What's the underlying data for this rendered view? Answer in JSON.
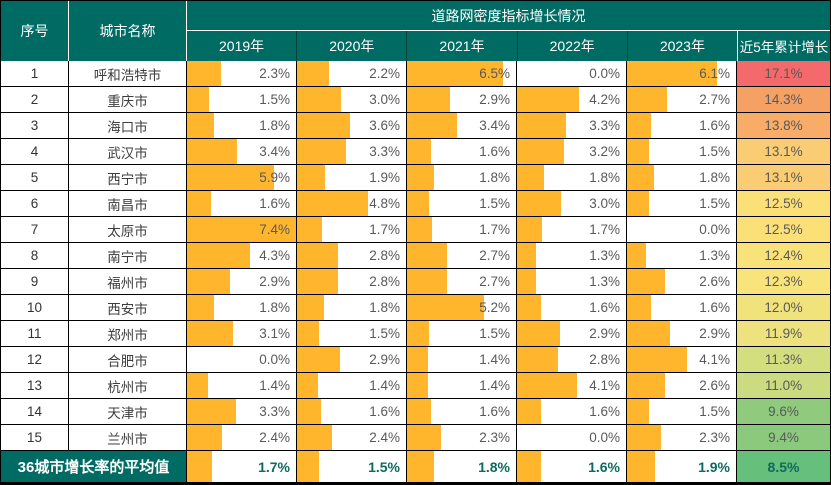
{
  "chart_data": {
    "type": "table",
    "title": "道路网密度指标增长情况",
    "unit": "%",
    "categories": [
      "呼和浩特市",
      "重庆市",
      "海口市",
      "武汉市",
      "西宁市",
      "南昌市",
      "太原市",
      "南宁市",
      "福州市",
      "西安市",
      "郑州市",
      "合肥市",
      "杭州市",
      "天津市",
      "兰州市"
    ],
    "series": [
      {
        "name": "2019年",
        "values": [
          2.3,
          1.5,
          1.8,
          3.4,
          5.9,
          1.6,
          7.4,
          4.3,
          2.9,
          1.8,
          3.1,
          0.0,
          1.4,
          3.3,
          2.4
        ]
      },
      {
        "name": "2020年",
        "values": [
          2.2,
          3.0,
          3.6,
          3.3,
          1.9,
          4.8,
          1.7,
          2.8,
          2.8,
          1.8,
          1.5,
          2.9,
          1.4,
          1.6,
          2.4
        ]
      },
      {
        "name": "2021年",
        "values": [
          6.5,
          2.9,
          3.4,
          1.6,
          1.8,
          1.5,
          1.7,
          2.7,
          2.7,
          5.2,
          1.5,
          1.4,
          1.4,
          1.6,
          2.3
        ]
      },
      {
        "name": "2022年",
        "values": [
          0.0,
          4.2,
          3.3,
          3.2,
          1.8,
          3.0,
          1.7,
          1.3,
          1.3,
          1.6,
          2.9,
          2.8,
          4.1,
          1.6,
          0.0
        ]
      },
      {
        "name": "2023年",
        "values": [
          6.1,
          2.7,
          1.6,
          1.5,
          1.8,
          1.5,
          0.0,
          1.3,
          2.6,
          1.6,
          2.9,
          4.1,
          2.6,
          1.5,
          2.3
        ]
      },
      {
        "name": "近5年累计增长",
        "values": [
          17.1,
          14.3,
          13.8,
          13.1,
          13.1,
          12.5,
          12.5,
          12.4,
          12.3,
          12.0,
          11.9,
          11.3,
          11.0,
          9.6,
          9.4
        ]
      }
    ],
    "summary_row": {
      "label": "36城市增长率的平均值",
      "values": [
        1.7,
        1.5,
        1.8,
        1.6,
        1.9
      ],
      "cumulative": 8.5
    },
    "layout_hints": {
      "data_bars": "orange, scaled 0 to ~7.4%",
      "cumulative_color_scale": "red-yellow-green"
    }
  },
  "table": {
    "header": {
      "col_index": "序号",
      "col_city": "城市名称",
      "group_title": "道路网密度指标增长情况",
      "year_cols": [
        "2019年",
        "2020年",
        "2021年",
        "2022年",
        "2023年"
      ],
      "cumulative_col": "近5年累计增长"
    },
    "rows": [
      {
        "index": "1",
        "city": "呼和浩特市",
        "values": [
          "2.3%",
          "2.2%",
          "6.5%",
          "0.0%",
          "6.1%"
        ],
        "cumulative": "17.1%",
        "cumulative_color": "#F4696B"
      },
      {
        "index": "2",
        "city": "重庆市",
        "values": [
          "1.5%",
          "3.0%",
          "2.9%",
          "4.2%",
          "2.7%"
        ],
        "cumulative": "14.3%",
        "cumulative_color": "#F5A163"
      },
      {
        "index": "3",
        "city": "海口市",
        "values": [
          "1.8%",
          "3.6%",
          "3.4%",
          "3.3%",
          "1.6%"
        ],
        "cumulative": "13.8%",
        "cumulative_color": "#F7AD68"
      },
      {
        "index": "4",
        "city": "武汉市",
        "values": [
          "3.4%",
          "3.3%",
          "1.6%",
          "3.2%",
          "1.5%"
        ],
        "cumulative": "13.1%",
        "cumulative_color": "#FACC73"
      },
      {
        "index": "5",
        "city": "西宁市",
        "values": [
          "5.9%",
          "1.9%",
          "1.8%",
          "1.8%",
          "1.8%"
        ],
        "cumulative": "13.1%",
        "cumulative_color": "#FACC73"
      },
      {
        "index": "6",
        "city": "南昌市",
        "values": [
          "1.6%",
          "4.8%",
          "1.5%",
          "3.0%",
          "1.5%"
        ],
        "cumulative": "12.5%",
        "cumulative_color": "#FBE078"
      },
      {
        "index": "7",
        "city": "太原市",
        "values": [
          "7.4%",
          "1.7%",
          "1.7%",
          "1.7%",
          "0.0%"
        ],
        "cumulative": "12.5%",
        "cumulative_color": "#FBE078"
      },
      {
        "index": "8",
        "city": "南宁市",
        "values": [
          "4.3%",
          "2.8%",
          "2.7%",
          "1.3%",
          "1.3%"
        ],
        "cumulative": "12.4%",
        "cumulative_color": "#FAE27A"
      },
      {
        "index": "9",
        "city": "福州市",
        "values": [
          "2.9%",
          "2.8%",
          "2.7%",
          "1.3%",
          "2.6%"
        ],
        "cumulative": "12.3%",
        "cumulative_color": "#F8E47A"
      },
      {
        "index": "10",
        "city": "西安市",
        "values": [
          "1.8%",
          "1.8%",
          "5.2%",
          "1.6%",
          "1.6%"
        ],
        "cumulative": "12.0%",
        "cumulative_color": "#F0E37C"
      },
      {
        "index": "11",
        "city": "郑州市",
        "values": [
          "3.1%",
          "1.5%",
          "1.5%",
          "2.9%",
          "2.9%"
        ],
        "cumulative": "11.9%",
        "cumulative_color": "#EDE27D"
      },
      {
        "index": "12",
        "city": "合肥市",
        "values": [
          "0.0%",
          "2.9%",
          "1.4%",
          "2.8%",
          "4.1%"
        ],
        "cumulative": "11.3%",
        "cumulative_color": "#D3DE7F"
      },
      {
        "index": "13",
        "city": "杭州市",
        "values": [
          "1.4%",
          "1.4%",
          "1.4%",
          "4.1%",
          "2.6%"
        ],
        "cumulative": "11.0%",
        "cumulative_color": "#CBDC80"
      },
      {
        "index": "14",
        "city": "天津市",
        "values": [
          "3.3%",
          "1.6%",
          "1.6%",
          "1.6%",
          "1.5%"
        ],
        "cumulative": "9.6%",
        "cumulative_color": "#8FCA7D"
      },
      {
        "index": "15",
        "city": "兰州市",
        "values": [
          "2.4%",
          "2.4%",
          "2.3%",
          "0.0%",
          "2.3%"
        ],
        "cumulative": "9.4%",
        "cumulative_color": "#8BC97D"
      }
    ],
    "summary": {
      "label": "36城市增长率的平均值",
      "values": [
        "1.7%",
        "1.5%",
        "1.8%",
        "1.6%",
        "1.9%"
      ],
      "cumulative": "8.5%",
      "cumulative_color": "#66BF7B"
    },
    "colors": {
      "header_bg": "#006B63",
      "bar": "#FFB62C",
      "value_text": "#595959",
      "summary_text": "#0D6A60"
    },
    "bar_scale_max": 7.4
  }
}
